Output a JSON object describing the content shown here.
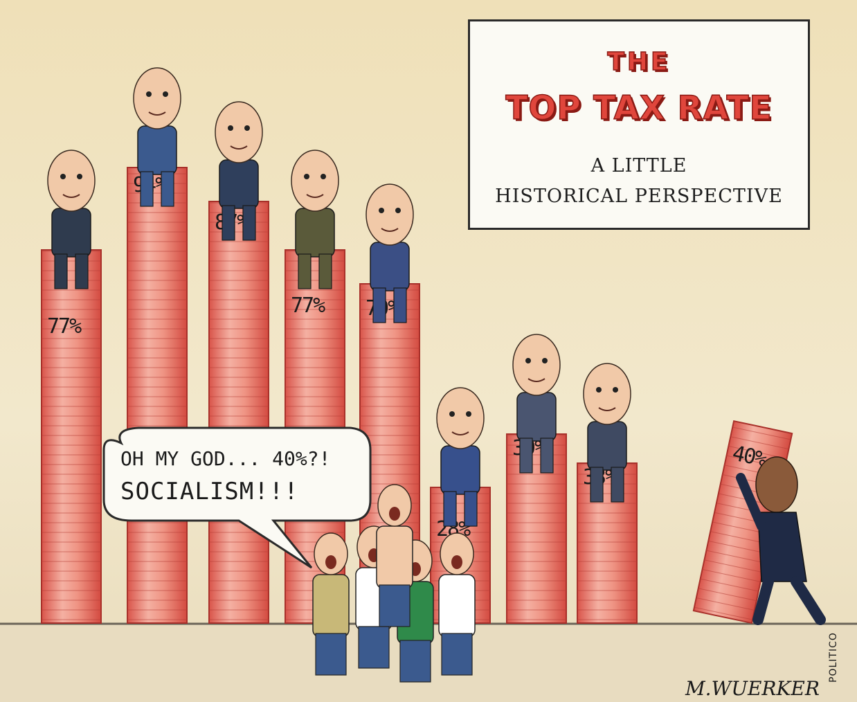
{
  "title": {
    "line1": "THE",
    "line2": "TOP TAX RATE",
    "sub1": "A LITTLE",
    "sub2": "HISTORICAL PERSPECTIVE"
  },
  "bars": [
    {
      "label": "77%",
      "value": 77
    },
    {
      "label": "94%",
      "value": 94
    },
    {
      "label": "87%",
      "value": 87
    },
    {
      "label": "77%",
      "value": 77
    },
    {
      "label": "70%",
      "value": 70
    },
    {
      "label": "28%",
      "value": 28
    },
    {
      "label": "39%",
      "value": 39
    },
    {
      "label": "33%",
      "value": 33
    },
    {
      "label": "40%",
      "value": 40
    }
  ],
  "speech": {
    "line1": "OH MY GOD... 40%?!",
    "line2": "SOCIALISM!!!"
  },
  "signature": "M.WUERKER",
  "publisher": "POLITICO",
  "colors": {
    "bar_fill": "#e66a5b",
    "bar_highlight": "#f7c9bc",
    "bar_edge": "#a8302a",
    "background": "#efe2bd",
    "title_red": "#e0463c"
  }
}
